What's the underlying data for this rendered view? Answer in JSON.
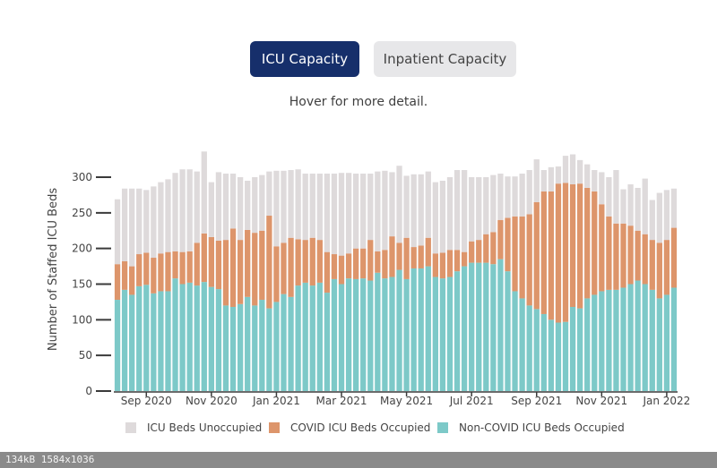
{
  "tabs": {
    "icu_label": "ICU Capacity",
    "inpatient_label": "Inpatient Capacity"
  },
  "hint": "Hover for more detail.",
  "footer": "134kB 1584x1036",
  "colors": {
    "unoccupied": "#dedadb",
    "covid": "#dd956b",
    "noncovid": "#7dc9c8",
    "active_tab": "#162f6b"
  },
  "chart_data": {
    "type": "bar",
    "stacked": true,
    "ylabel": "Number of Staffed ICU Beds",
    "ylim": [
      0,
      340
    ],
    "yticks": [
      0,
      50,
      100,
      150,
      200,
      250,
      300
    ],
    "x_tick_labels": [
      "Sep 2020",
      "Nov 2020",
      "Jan 2021",
      "Mar 2021",
      "May 2021",
      "Jul 2021",
      "Sep 2021",
      "Nov 2021",
      "Jan 2022"
    ],
    "x_tick_bar_index": [
      4,
      13,
      22,
      31,
      40,
      49,
      58,
      67,
      76
    ],
    "legend": [
      {
        "name": "ICU Beds Unoccupied",
        "color": "#dedadb"
      },
      {
        "name": "COVID ICU Beds Occupied",
        "color": "#dd956b"
      },
      {
        "name": "Non-COVID ICU Beds Occupied",
        "color": "#7dc9c8"
      }
    ],
    "series": [
      {
        "name": "Non-COVID ICU Beds Occupied",
        "values": [
          128,
          142,
          135,
          147,
          149,
          137,
          140,
          140,
          158,
          150,
          152,
          148,
          153,
          146,
          143,
          120,
          118,
          122,
          132,
          120,
          128,
          116,
          125,
          136,
          132,
          148,
          152,
          148,
          152,
          138,
          157,
          150,
          158,
          157,
          158,
          155,
          166,
          158,
          160,
          170,
          157,
          172,
          172,
          175,
          160,
          158,
          160,
          168,
          175,
          180,
          180,
          180,
          178,
          185,
          168,
          140,
          130,
          120,
          115,
          108,
          100,
          96,
          97,
          118,
          116,
          130,
          135,
          140,
          142,
          142,
          145,
          150,
          155,
          150,
          142,
          130,
          135,
          145
        ]
      },
      {
        "name": "COVID ICU Beds Occupied",
        "values": [
          50,
          40,
          40,
          45,
          45,
          50,
          53,
          55,
          38,
          45,
          44,
          60,
          68,
          70,
          68,
          92,
          110,
          90,
          94,
          102,
          97,
          130,
          78,
          72,
          83,
          65,
          60,
          67,
          60,
          57,
          35,
          40,
          35,
          43,
          42,
          57,
          30,
          40,
          57,
          38,
          58,
          30,
          32,
          40,
          33,
          36,
          38,
          30,
          20,
          30,
          32,
          40,
          45,
          55,
          75,
          105,
          115,
          128,
          150,
          172,
          180,
          195,
          195,
          172,
          175,
          155,
          145,
          122,
          103,
          93,
          90,
          82,
          70,
          70,
          70,
          78,
          77,
          84
        ]
      },
      {
        "name": "ICU Beds Unoccupied",
        "values": [
          91,
          102,
          109,
          92,
          88,
          100,
          100,
          102,
          110,
          116,
          115,
          100,
          115,
          77,
          96,
          93,
          77,
          88,
          69,
          78,
          78,
          62,
          106,
          101,
          95,
          98,
          93,
          90,
          93,
          110,
          113,
          116,
          113,
          105,
          105,
          93,
          112,
          111,
          90,
          108,
          87,
          102,
          100,
          93,
          100,
          101,
          102,
          112,
          115,
          90,
          88,
          80,
          80,
          65,
          58,
          56,
          60,
          62,
          60,
          30,
          34,
          24,
          38,
          42,
          33,
          33,
          30,
          45,
          55,
          75,
          48,
          58,
          60,
          78,
          56,
          70,
          70,
          55
        ]
      }
    ]
  }
}
